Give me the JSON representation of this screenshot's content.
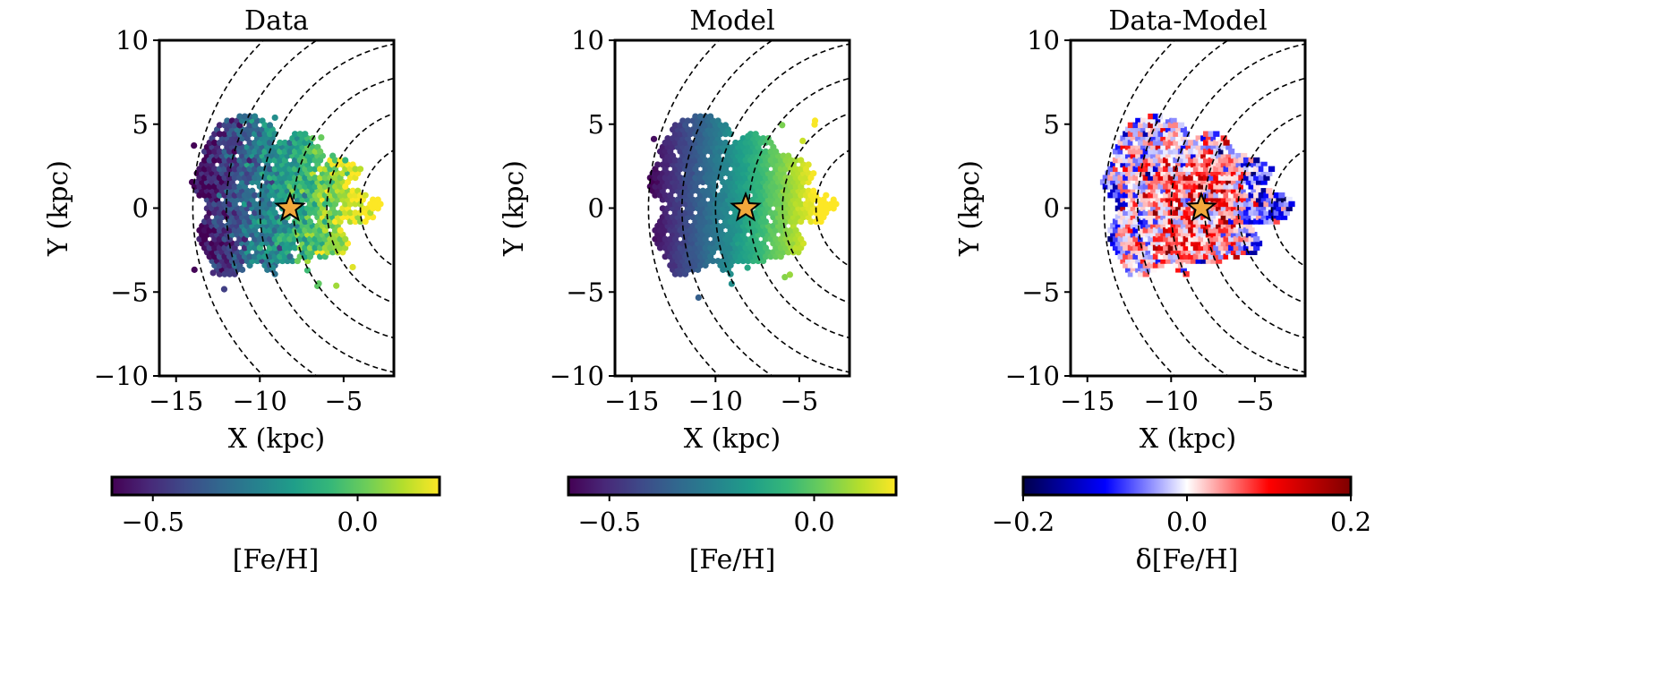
{
  "chart_data": [
    {
      "type": "scatter",
      "title": "Data",
      "xlabel": "X (kpc)",
      "ylabel": "Y (kpc)",
      "xlim": [
        -16,
        -2
      ],
      "ylim": [
        -10,
        10
      ],
      "xticks": [
        -15,
        -10,
        -5
      ],
      "xtick_labels": [
        "−15",
        "−10",
        "−5"
      ],
      "yticks": [
        10,
        5,
        0,
        -5,
        -10
      ],
      "ytick_labels": [
        "10",
        "5",
        "0",
        "−5",
        "−10"
      ],
      "grid": false,
      "colormap": "viridis",
      "colorbar": {
        "label": "[Fe/H]",
        "range": [
          -0.6,
          0.2
        ],
        "ticks": [
          -0.5,
          0.0
        ],
        "tick_labels": [
          "−0.5",
          "0.0"
        ],
        "placement": "bottom"
      },
      "sun_marker": {
        "x": -8.2,
        "y": 0,
        "color": "#f2a83b"
      },
      "dashed_circle_radii": [
        4,
        6,
        8,
        10,
        12,
        14
      ],
      "trend": "[Fe/H] rises from about -0.6 at X=-14 to about 0.2 at X=-4, with scatter"
    },
    {
      "type": "scatter",
      "title": "Model",
      "xlabel": "X (kpc)",
      "ylabel": "Y (kpc)",
      "xlim": [
        -16,
        -2
      ],
      "ylim": [
        -10,
        10
      ],
      "xticks": [
        -15,
        -10,
        -5
      ],
      "xtick_labels": [
        "−15",
        "−10",
        "−5"
      ],
      "yticks": [
        10,
        5,
        0,
        -5,
        -10
      ],
      "ytick_labels": [
        "10",
        "5",
        "0",
        "−5",
        "−10"
      ],
      "grid": false,
      "colormap": "viridis",
      "colorbar": {
        "label": "[Fe/H]",
        "range": [
          -0.6,
          0.2
        ],
        "ticks": [
          -0.5,
          0.0
        ],
        "tick_labels": [
          "−0.5",
          "0.0"
        ],
        "placement": "bottom"
      },
      "sun_marker": {
        "x": -8.2,
        "y": 0,
        "color": "#f2a83b"
      },
      "dashed_circle_radii": [
        4,
        6,
        8,
        10,
        12,
        14
      ],
      "trend": "smooth radial gradient from about -0.6 at X=-14 to about 0.2 at X=-4"
    },
    {
      "type": "heatmap",
      "title": "Data-Model",
      "xlabel": "X (kpc)",
      "ylabel": "Y (kpc)",
      "xlim": [
        -16,
        -2
      ],
      "ylim": [
        -10,
        10
      ],
      "xticks": [
        -15,
        -10,
        -5
      ],
      "xtick_labels": [
        "−15",
        "−10",
        "−5"
      ],
      "yticks": [
        10,
        5,
        0,
        -5,
        -10
      ],
      "ytick_labels": [
        "10",
        "5",
        "0",
        "−5",
        "−10"
      ],
      "grid": false,
      "colormap": "seismic",
      "colorbar": {
        "label": "δ[Fe/H]",
        "range": [
          -0.2,
          0.2
        ],
        "ticks": [
          -0.2,
          0.0,
          0.2
        ],
        "tick_labels": [
          "−0.2",
          "0.0",
          "0.2"
        ],
        "placement": "bottom"
      },
      "sun_marker": {
        "x": -8.2,
        "y": 0,
        "color": "#f2a83b"
      },
      "dashed_circle_radii": [
        4,
        6,
        8,
        10,
        12,
        14
      ],
      "trend": "residuals mostly within ±0.1, positive (red) near the Sun, negative (blue) at the outer edges"
    }
  ]
}
